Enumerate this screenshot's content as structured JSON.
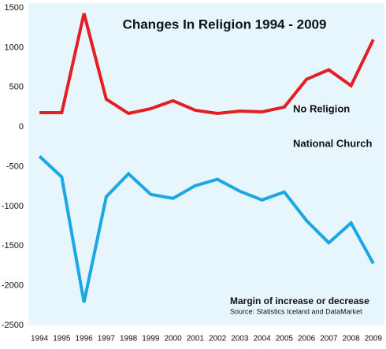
{
  "chart_data": {
    "type": "line",
    "title": "Changes In Religion 1994 - 2009",
    "categories": [
      "1994",
      "1995",
      "1996",
      "1997",
      "1998",
      "1999",
      "2000",
      "2001",
      "2002",
      "2003",
      "2004",
      "2005",
      "2006",
      "2007",
      "2008",
      "2009"
    ],
    "series": [
      {
        "name": "No Religion",
        "color": "#e31e24",
        "values": [
          180,
          180,
          1430,
          350,
          170,
          230,
          330,
          210,
          170,
          200,
          190,
          250,
          600,
          720,
          520,
          1100
        ]
      },
      {
        "name": "National Church",
        "color": "#1aa7e4",
        "values": [
          -370,
          -630,
          -2210,
          -880,
          -590,
          -850,
          -900,
          -740,
          -660,
          -810,
          -920,
          -820,
          -1180,
          -1460,
          -1210,
          -1720
        ]
      }
    ],
    "ylim": [
      -2500,
      1500
    ],
    "yticks": [
      1500,
      1000,
      500,
      0,
      -500,
      -1000,
      -1500,
      -2000,
      -2500
    ],
    "annotation": "Margin of increase or decrease",
    "source": "Source: Statistics Iceland and DataMarket",
    "background": "#e6f6fc"
  }
}
